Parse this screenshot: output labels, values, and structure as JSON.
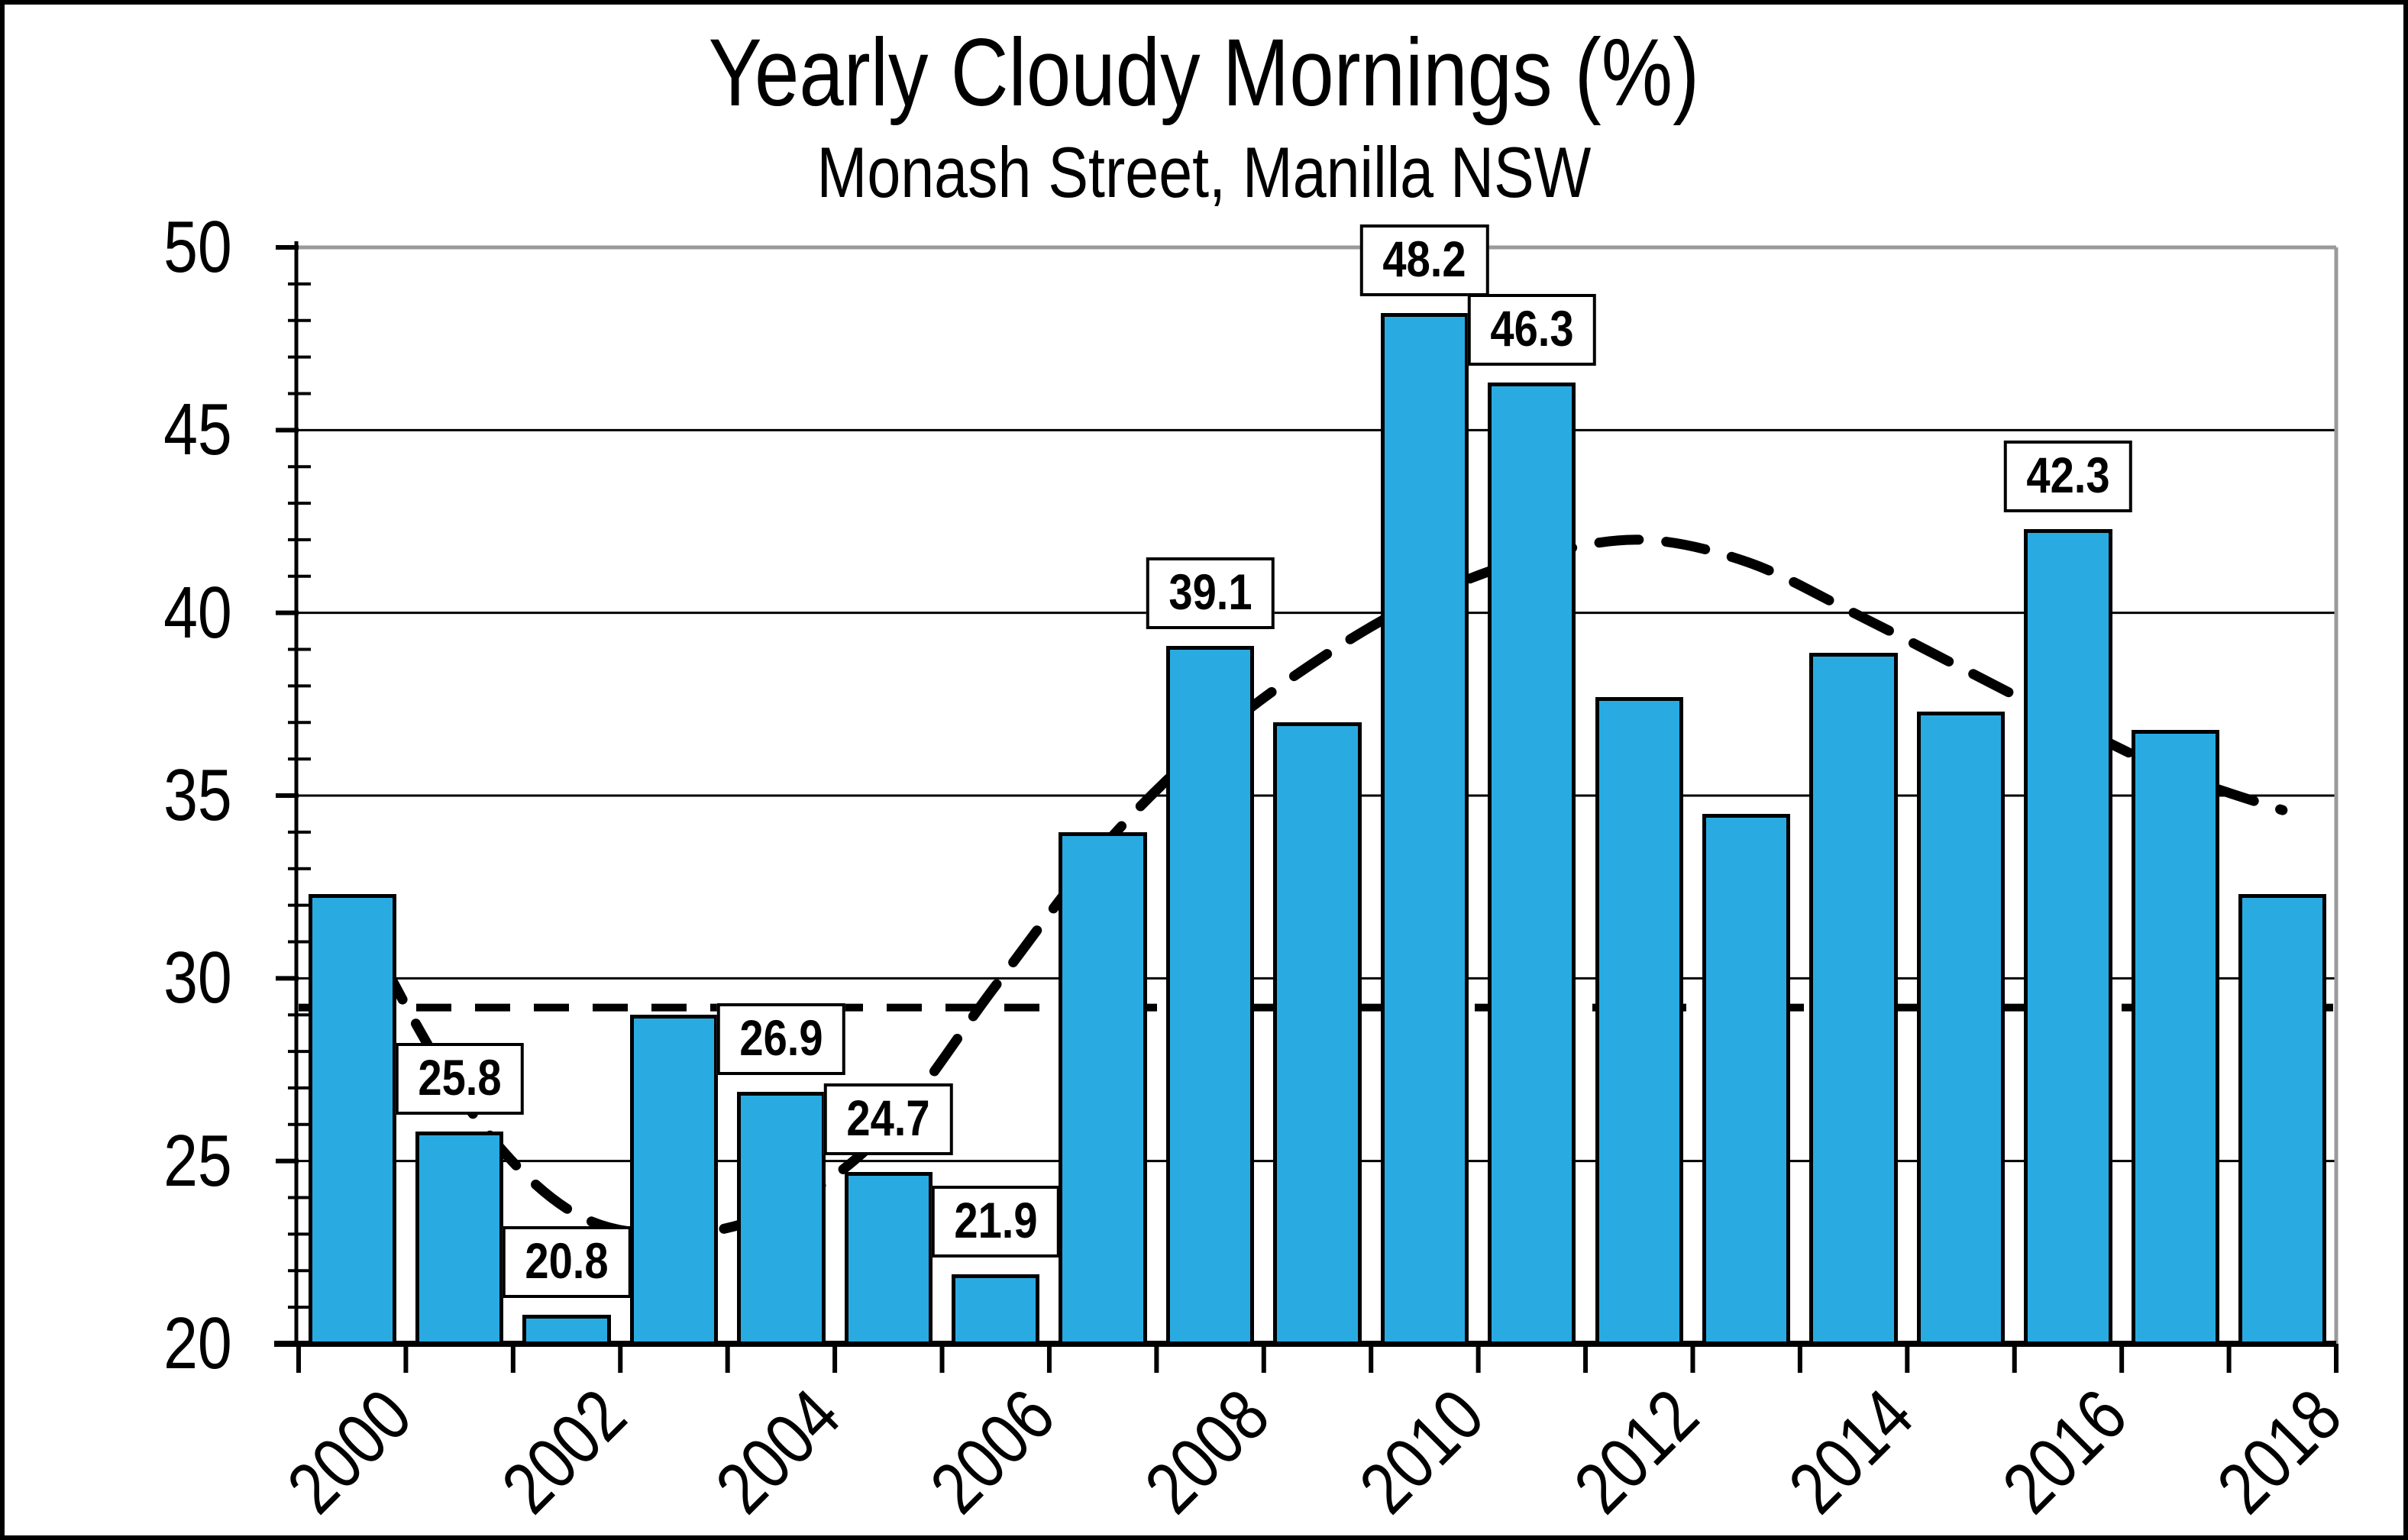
{
  "chart_data": {
    "type": "bar",
    "title": "Yearly Cloudy Mornings (%)",
    "subtitle": "Monash Street, Manilla NSW",
    "xlabel": "",
    "ylabel": "",
    "categories": [
      2000,
      2001,
      2002,
      2003,
      2004,
      2005,
      2006,
      2007,
      2008,
      2009,
      2010,
      2011,
      2012,
      2013,
      2014,
      2015,
      2016,
      2017,
      2018
    ],
    "values": [
      32.3,
      25.8,
      20.8,
      29.0,
      26.9,
      24.7,
      21.9,
      34.0,
      39.1,
      37.0,
      48.2,
      46.3,
      37.7,
      34.5,
      38.9,
      37.3,
      42.3,
      36.8,
      32.3
    ],
    "data_labels": [
      "",
      "25.8",
      "20.8",
      "",
      "26.9",
      "24.7",
      "21.9",
      "",
      "39.1",
      "",
      "48.2",
      "46.3",
      "",
      "",
      "",
      "",
      "42.3",
      "",
      ""
    ],
    "ylim": [
      20,
      50
    ],
    "y_tick_step": 5,
    "y_minor_step": 1,
    "y_tick_labels": [
      "20",
      "25",
      "30",
      "35",
      "40",
      "45",
      "50"
    ],
    "x_axis_labels": [
      "2000",
      "2002",
      "2004",
      "2006",
      "2008",
      "2010",
      "2012",
      "2014",
      "2016",
      "2018"
    ],
    "grid": "horizontal",
    "legend": "none",
    "reference_line": {
      "value": 29.2,
      "style": "dashed"
    },
    "trend_line": {
      "style": "dashed",
      "points": [
        [
          2000,
          32.0
        ],
        [
          2001,
          26.8
        ],
        [
          2002,
          23.7
        ],
        [
          2003,
          23.0
        ],
        [
          2004,
          23.7
        ],
        [
          2005,
          25.9
        ],
        [
          2006,
          29.8
        ],
        [
          2007,
          33.6
        ],
        [
          2008,
          36.5
        ],
        [
          2009,
          38.7
        ],
        [
          2010,
          40.4
        ],
        [
          2011,
          41.5
        ],
        [
          2012,
          42.0
        ],
        [
          2013,
          41.4
        ],
        [
          2014,
          40.0
        ],
        [
          2015,
          38.5
        ],
        [
          2016,
          37.0
        ],
        [
          2017,
          35.6
        ],
        [
          2018,
          34.6
        ]
      ]
    },
    "colors": {
      "bar_fill": "#29ABE2",
      "bar_border": "#000000",
      "grid_line": "#000000",
      "frame_line": "#9A9A9A",
      "text": "#000000",
      "background": "#FFFFFF"
    }
  }
}
